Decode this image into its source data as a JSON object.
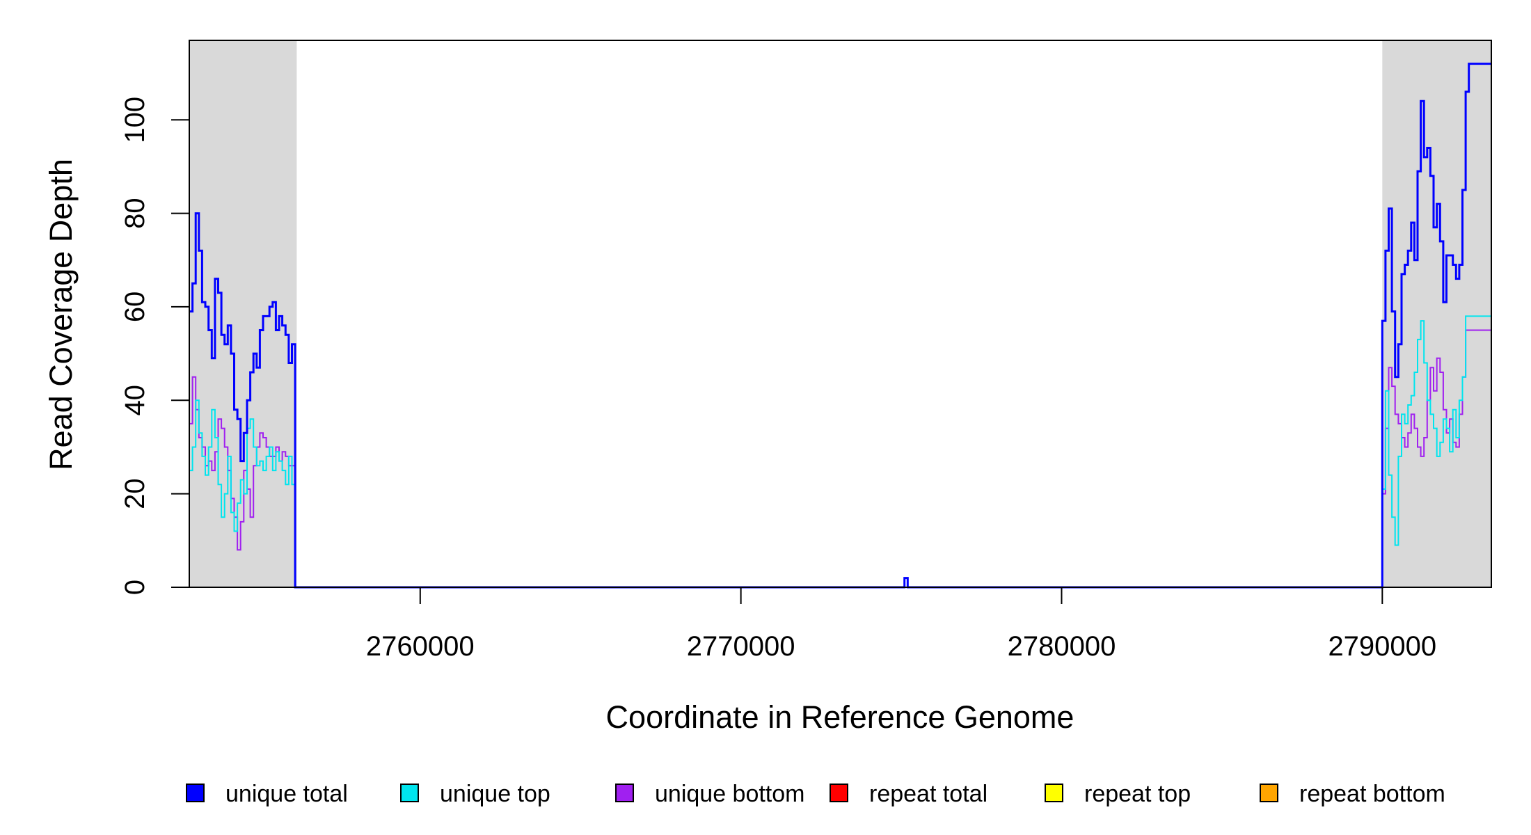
{
  "chart_data": {
    "type": "line",
    "xlabel": "Coordinate in Reference Genome",
    "ylabel": "Read Coverage Depth",
    "xlim": [
      2752800,
      2793400
    ],
    "ylim": [
      0,
      117
    ],
    "x_ticks": [
      2760000,
      2770000,
      2780000,
      2790000
    ],
    "x_tick_labels": [
      "2760000",
      "2770000",
      "2780000",
      "2790000"
    ],
    "y_ticks": [
      0,
      20,
      40,
      60,
      80,
      100
    ],
    "y_tick_labels": [
      "0",
      "20",
      "40",
      "60",
      "80",
      "100"
    ],
    "shaded_regions": [
      [
        2752800,
        2756150
      ],
      [
        2790000,
        2793400
      ]
    ],
    "grid": false,
    "legend_position": "bottom",
    "legend": [
      {
        "label": "unique total",
        "color": "#0000ff"
      },
      {
        "label": "unique top",
        "color": "#00e5ee"
      },
      {
        "label": "unique bottom",
        "color": "#a020f0"
      },
      {
        "label": "repeat total",
        "color": "#ff0000"
      },
      {
        "label": "repeat top",
        "color": "#ffff00"
      },
      {
        "label": "repeat bottom",
        "color": "#ffa500"
      }
    ],
    "series": [
      {
        "name": "unique total",
        "color": "#0000ff",
        "x": [
          2752800,
          2752900,
          2753000,
          2753100,
          2753200,
          2753300,
          2753400,
          2753500,
          2753600,
          2753700,
          2753800,
          2753900,
          2754000,
          2754100,
          2754200,
          2754300,
          2754400,
          2754500,
          2754600,
          2754700,
          2754800,
          2754900,
          2755000,
          2755100,
          2755200,
          2755300,
          2755400,
          2755500,
          2755600,
          2755700,
          2755800,
          2755900,
          2756000,
          2756100,
          2756150,
          2775000,
          2775100,
          2775200,
          2775300,
          2789990,
          2790000,
          2790100,
          2790200,
          2790300,
          2790400,
          2790500,
          2790600,
          2790700,
          2790800,
          2790900,
          2791000,
          2791100,
          2791200,
          2791300,
          2791400,
          2791500,
          2791600,
          2791700,
          2791800,
          2791900,
          2792000,
          2792100,
          2792200,
          2792300,
          2792400,
          2792500,
          2792600,
          2792700,
          2792800,
          2792900,
          2793000,
          2793100,
          2793200,
          2793300,
          2793400
        ],
        "y": [
          59,
          65,
          80,
          72,
          61,
          60,
          55,
          49,
          66,
          63,
          54,
          52,
          56,
          50,
          38,
          36,
          27,
          33,
          40,
          46,
          50,
          47,
          55,
          58,
          58,
          60,
          61,
          55,
          58,
          56,
          54,
          48,
          52,
          0,
          0,
          0,
          2,
          0,
          0,
          0,
          57,
          72,
          81,
          59,
          45,
          52,
          67,
          69,
          72,
          78,
          70,
          89,
          104,
          92,
          94,
          88,
          77,
          82,
          74,
          61,
          71,
          71,
          69,
          66,
          69,
          85,
          106,
          112,
          112,
          112,
          112,
          112,
          112,
          112,
          112
        ]
      },
      {
        "name": "unique top",
        "color": "#00e5ee",
        "x": [
          2752800,
          2752900,
          2753000,
          2753100,
          2753200,
          2753300,
          2753400,
          2753500,
          2753600,
          2753700,
          2753800,
          2753900,
          2754000,
          2754100,
          2754200,
          2754300,
          2754400,
          2754500,
          2754600,
          2754700,
          2754800,
          2754900,
          2755000,
          2755100,
          2755200,
          2755300,
          2755400,
          2755500,
          2755600,
          2755700,
          2755800,
          2755900,
          2756000,
          2756100,
          2756150,
          2789990,
          2790000,
          2790100,
          2790200,
          2790300,
          2790400,
          2790500,
          2790600,
          2790700,
          2790800,
          2790900,
          2791000,
          2791100,
          2791200,
          2791300,
          2791400,
          2791500,
          2791600,
          2791700,
          2791800,
          2791900,
          2792000,
          2792100,
          2792200,
          2792300,
          2792400,
          2792500,
          2792600,
          2792700,
          2792800,
          2792900,
          2793000,
          2793100,
          2793200,
          2793300,
          2793400
        ],
        "y": [
          25,
          30,
          40,
          33,
          28,
          24,
          30,
          38,
          32,
          22,
          15,
          20,
          28,
          16,
          12,
          18,
          23,
          20,
          34,
          36,
          30,
          26,
          27,
          25,
          28,
          30,
          25,
          29,
          27,
          25,
          22,
          28,
          22,
          0,
          0,
          0,
          21,
          42,
          24,
          15,
          9,
          28,
          37,
          35,
          39,
          41,
          46,
          53,
          57,
          48,
          40,
          37,
          34,
          28,
          31,
          36,
          34,
          29,
          38,
          32,
          40,
          45,
          58,
          58,
          58,
          58,
          58,
          58,
          58,
          58,
          58
        ]
      },
      {
        "name": "unique bottom",
        "color": "#a020f0",
        "x": [
          2752800,
          2752900,
          2753000,
          2753100,
          2753200,
          2753300,
          2753400,
          2753500,
          2753600,
          2753700,
          2753800,
          2753900,
          2754000,
          2754100,
          2754200,
          2754300,
          2754400,
          2754500,
          2754600,
          2754700,
          2754800,
          2754900,
          2755000,
          2755100,
          2755200,
          2755300,
          2755400,
          2755500,
          2755600,
          2755700,
          2755800,
          2755900,
          2756000,
          2756100,
          2756150,
          2789990,
          2790000,
          2790100,
          2790200,
          2790300,
          2790400,
          2790500,
          2790600,
          2790700,
          2790800,
          2790900,
          2791000,
          2791100,
          2791200,
          2791300,
          2791400,
          2791500,
          2791600,
          2791700,
          2791800,
          2791900,
          2792000,
          2792100,
          2792200,
          2792300,
          2792400,
          2792500,
          2792600,
          2792700,
          2792800,
          2792900,
          2793000,
          2793100,
          2793200,
          2793300,
          2793400
        ],
        "y": [
          35,
          45,
          38,
          32,
          30,
          26,
          27,
          25,
          29,
          36,
          34,
          30,
          25,
          19,
          15,
          8,
          14,
          25,
          21,
          15,
          26,
          30,
          33,
          32,
          30,
          28,
          28,
          30,
          27,
          29,
          28,
          26,
          26,
          0,
          0,
          0,
          20,
          34,
          47,
          43,
          37,
          35,
          32,
          30,
          33,
          37,
          34,
          30,
          28,
          32,
          40,
          47,
          42,
          49,
          46,
          38,
          33,
          36,
          31,
          30,
          37,
          45,
          55,
          55,
          55,
          55,
          55,
          55,
          55,
          55,
          55
        ]
      },
      {
        "name": "repeat total",
        "color": "#ff0000",
        "x": [
          2752800,
          2793400
        ],
        "y": [
          0,
          0
        ]
      },
      {
        "name": "repeat top",
        "color": "#ffff00",
        "x": [
          2752800,
          2793400
        ],
        "y": [
          0,
          0
        ]
      },
      {
        "name": "repeat bottom",
        "color": "#ffa500",
        "x": [
          2752800,
          2793400
        ],
        "y": [
          0,
          0
        ]
      }
    ]
  }
}
